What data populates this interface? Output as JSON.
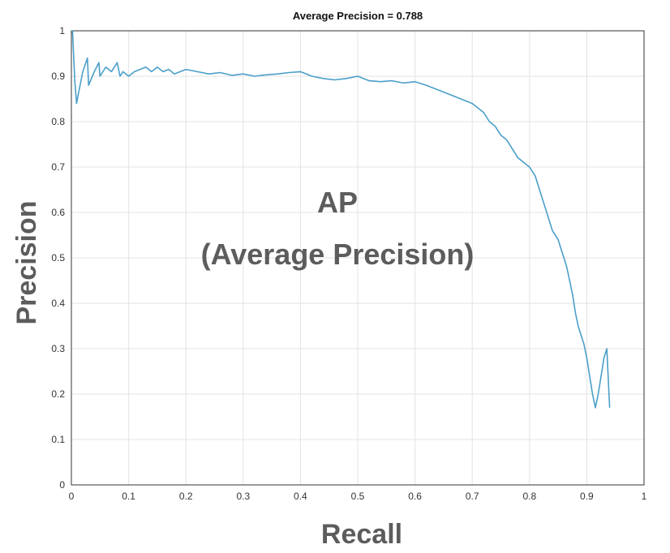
{
  "chart_data": {
    "type": "line",
    "title": "Average Precision = 0.788",
    "xlabel": "Recall",
    "ylabel": "Precision",
    "annotation": [
      "AP",
      "(Average Precision)"
    ],
    "xlim": [
      0,
      1
    ],
    "ylim": [
      0,
      1
    ],
    "xticks": [
      "0",
      "0.1",
      "0.2",
      "0.3",
      "0.4",
      "0.5",
      "0.6",
      "0.7",
      "0.8",
      "0.9",
      "1"
    ],
    "yticks": [
      "0",
      "0.1",
      "0.2",
      "0.3",
      "0.4",
      "0.5",
      "0.6",
      "0.7",
      "0.8",
      "0.9",
      "1"
    ],
    "grid": true,
    "line_color": "#4a9fc9",
    "series": [
      {
        "x": [
          0.0,
          0.002,
          0.006,
          0.009,
          0.012,
          0.02,
          0.028,
          0.03,
          0.04,
          0.048,
          0.05,
          0.06,
          0.07,
          0.08,
          0.085,
          0.09,
          0.1,
          0.11,
          0.12,
          0.13,
          0.14,
          0.15,
          0.16,
          0.17,
          0.18,
          0.19,
          0.2,
          0.22,
          0.24,
          0.26,
          0.28,
          0.3,
          0.32,
          0.34,
          0.36,
          0.38,
          0.4,
          0.42,
          0.44,
          0.46,
          0.48,
          0.5,
          0.52,
          0.54,
          0.56,
          0.58,
          0.6,
          0.62,
          0.64,
          0.66,
          0.68,
          0.7,
          0.72,
          0.73,
          0.74,
          0.75,
          0.76,
          0.77,
          0.78,
          0.79,
          0.8,
          0.81,
          0.82,
          0.83,
          0.84,
          0.85,
          0.86,
          0.865,
          0.87,
          0.875,
          0.88,
          0.885,
          0.89,
          0.895,
          0.9,
          0.905,
          0.91,
          0.915,
          0.92,
          0.925,
          0.93,
          0.935,
          0.94
        ],
        "y": [
          1.0,
          1.0,
          0.89,
          0.84,
          0.86,
          0.91,
          0.94,
          0.88,
          0.91,
          0.93,
          0.9,
          0.92,
          0.91,
          0.93,
          0.9,
          0.91,
          0.9,
          0.91,
          0.915,
          0.92,
          0.91,
          0.92,
          0.91,
          0.915,
          0.905,
          0.91,
          0.915,
          0.91,
          0.905,
          0.908,
          0.902,
          0.905,
          0.9,
          0.903,
          0.905,
          0.908,
          0.91,
          0.9,
          0.895,
          0.892,
          0.895,
          0.9,
          0.89,
          0.888,
          0.89,
          0.885,
          0.888,
          0.88,
          0.87,
          0.86,
          0.85,
          0.84,
          0.82,
          0.8,
          0.79,
          0.77,
          0.76,
          0.74,
          0.72,
          0.71,
          0.7,
          0.68,
          0.64,
          0.6,
          0.56,
          0.54,
          0.5,
          0.48,
          0.45,
          0.42,
          0.38,
          0.35,
          0.33,
          0.31,
          0.28,
          0.24,
          0.2,
          0.17,
          0.2,
          0.24,
          0.28,
          0.3,
          0.17
        ]
      }
    ]
  }
}
